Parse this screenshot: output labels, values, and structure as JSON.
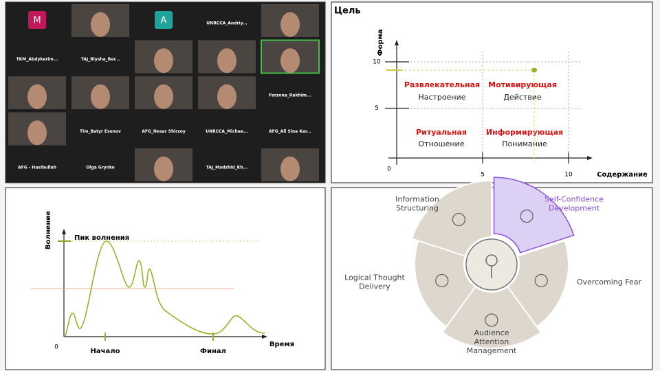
{
  "video_grid": {
    "active_speaker": 9,
    "tiles": [
      {
        "letter": "M",
        "color": "#c2185b"
      },
      null,
      {
        "letter": "A",
        "color": "#1fa39a"
      },
      "UNRCCA_Andriy...",
      null,
      "TKM_Abdykerim...",
      "TAJ_Biysha_Ber...",
      null,
      null,
      null,
      null,
      null,
      null,
      null,
      "Farzona_Rakhim...",
      null,
      "Tim_Batyr Esenov",
      "AFG_Nesar Shirzoy",
      "UNRCCA_Michae...",
      "AFG_Ali Sina Kar...",
      "AFG - Hasibullah",
      "Olga Grynko",
      null,
      "TAJ_Madzhid_Kh...",
      null
    ]
  },
  "goal_chart": {
    "title": "Цель",
    "y_label": "Форма",
    "x_label": "Содержание",
    "origin_label": "0",
    "xlim": [
      0,
      11.5
    ],
    "ylim": [
      0,
      12
    ],
    "xticks": [
      5,
      10
    ],
    "yticks": [
      5,
      10
    ],
    "point": {
      "x": 8,
      "y": 9.1
    },
    "quadrants": [
      {
        "title": "Развлекательная",
        "subtitle": "Настроение"
      },
      {
        "title": "Мотивирующая",
        "subtitle": "Действие"
      },
      {
        "title": "Ритуальная",
        "subtitle": "Отношение"
      },
      {
        "title": "Информирующая",
        "subtitle": "Понимание"
      }
    ]
  },
  "excitement_chart": {
    "y_label": "Волнение",
    "peak_label": "Пик волнения",
    "x_label": "Время",
    "origin_label": "0",
    "start_label": "Начало",
    "end_label": "Финал"
  },
  "diagram": {
    "segments": [
      {
        "label_lines": [
          "Self-Confidence",
          "Development"
        ]
      },
      {
        "label_lines": [
          "Overcoming Fear"
        ]
      },
      {
        "label_lines": [
          "Audience",
          "Attention",
          "Management"
        ]
      },
      {
        "label_lines": [
          "Logical Thought",
          "Delivery"
        ]
      },
      {
        "label_lines": [
          "Information",
          "Structuring"
        ]
      }
    ]
  }
}
